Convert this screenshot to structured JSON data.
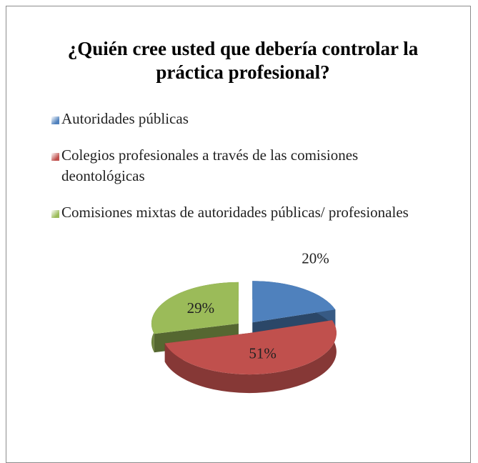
{
  "chart_data": {
    "type": "pie",
    "title": "¿Quién cree usted que debería controlar la práctica profesional?",
    "categories": [
      "Autoridades públicas",
      "Colegios profesionales a través de las comisiones deontológicas",
      "Comisiones mixtas de autoridades públicas/ profesionales"
    ],
    "values": [
      20,
      51,
      29
    ],
    "value_labels": [
      "20%",
      "51%",
      "29%"
    ],
    "colors": [
      "#4f81bd",
      "#c0504d",
      "#9bbb59"
    ],
    "legend": "top"
  }
}
